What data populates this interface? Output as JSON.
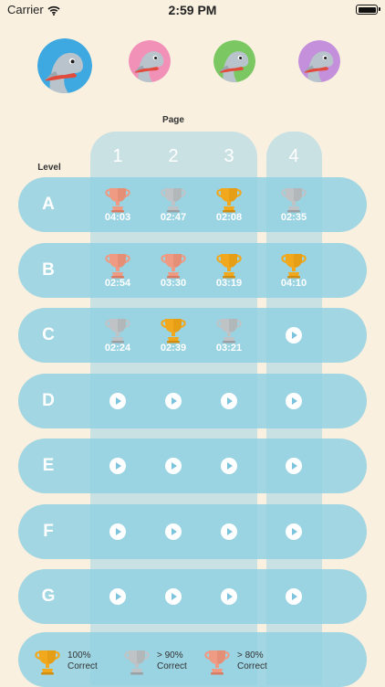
{
  "status_bar": {
    "carrier": "Carrier",
    "time": "2:59 PM"
  },
  "avatars": [
    {
      "name": "dolphin-blue",
      "bg": "#3ea8e0",
      "body": "#b8c3cc",
      "selected": true
    },
    {
      "name": "dolphin-pink",
      "bg": "#f291b8",
      "body": "#b8c3cc",
      "selected": false
    },
    {
      "name": "dolphin-green",
      "bg": "#7bc862",
      "body": "#b8c3cc",
      "selected": false
    },
    {
      "name": "dolphin-purple",
      "bg": "#c48fdb",
      "body": "#b8c3cc",
      "selected": false
    }
  ],
  "labels": {
    "page": "Page",
    "level": "Level"
  },
  "pages": [
    "1",
    "2",
    "3",
    "4"
  ],
  "levels": [
    {
      "letter": "A",
      "cells": [
        {
          "trophy": "bronze",
          "time": "04:03"
        },
        {
          "trophy": "silver",
          "time": "02:47"
        },
        {
          "trophy": "gold",
          "time": "02:08"
        },
        {
          "trophy": "silver",
          "time": "02:35"
        }
      ]
    },
    {
      "letter": "B",
      "cells": [
        {
          "trophy": "bronze",
          "time": "02:54"
        },
        {
          "trophy": "bronze",
          "time": "03:30"
        },
        {
          "trophy": "gold",
          "time": "03:19"
        },
        {
          "trophy": "gold",
          "time": "04:10"
        }
      ]
    },
    {
      "letter": "C",
      "cells": [
        {
          "trophy": "silver",
          "time": "02:24"
        },
        {
          "trophy": "gold",
          "time": "02:39"
        },
        {
          "trophy": "silver",
          "time": "03:21"
        },
        {
          "play": true
        }
      ]
    },
    {
      "letter": "D",
      "cells": [
        {
          "play": true
        },
        {
          "play": true
        },
        {
          "play": true
        },
        {
          "play": true
        }
      ]
    },
    {
      "letter": "E",
      "cells": [
        {
          "play": true
        },
        {
          "play": true
        },
        {
          "play": true
        },
        {
          "play": true
        }
      ]
    },
    {
      "letter": "F",
      "cells": [
        {
          "play": true
        },
        {
          "play": true
        },
        {
          "play": true
        },
        {
          "play": true
        }
      ]
    },
    {
      "letter": "G",
      "cells": [
        {
          "play": true
        },
        {
          "play": true
        },
        {
          "play": true
        },
        {
          "play": true
        }
      ]
    }
  ],
  "legend": [
    {
      "trophy": "gold",
      "line1": "100%",
      "line2": "Correct"
    },
    {
      "trophy": "silver",
      "line1": "> 90%",
      "line2": "Correct"
    },
    {
      "trophy": "bronze",
      "line1": "> 80%",
      "line2": "Correct"
    }
  ],
  "colors": {
    "gold": "#f1a81d",
    "gold_dark": "#d18d0f",
    "silver": "#bfc3c6",
    "silver_dark": "#9aa0a4",
    "bronze": "#ef9a82",
    "bronze_dark": "#d77b63",
    "play": "#ffffff",
    "play_arrow": "#7cc4dd"
  }
}
